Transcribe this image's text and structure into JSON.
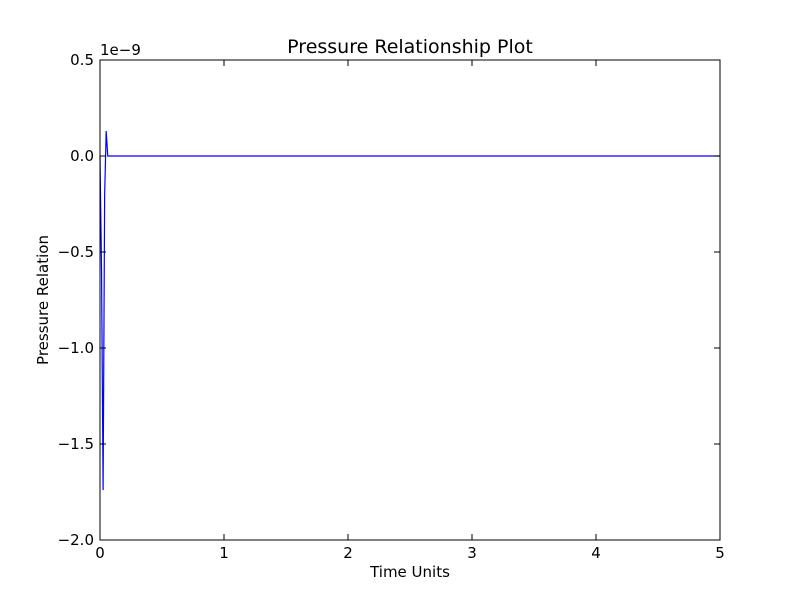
{
  "chart_data": {
    "type": "line",
    "title": "Pressure Relationship Plot",
    "xlabel": "Time Units",
    "ylabel": "Pressure Relation",
    "y_offset_label": "1e−9",
    "xlim": [
      0,
      5
    ],
    "ylim": [
      -2.0,
      0.5
    ],
    "x_ticks": [
      0,
      1,
      2,
      3,
      4,
      5
    ],
    "x_tick_labels": [
      "0",
      "1",
      "2",
      "3",
      "4",
      "5"
    ],
    "y_ticks": [
      -2.0,
      -1.5,
      -1.0,
      -0.5,
      0.0,
      0.5
    ],
    "y_tick_labels": [
      "−2.0",
      "−1.5",
      "−1.0",
      "−0.5",
      "0.0",
      "0.5"
    ],
    "grid": false,
    "line_color": "#0000ff",
    "series": [
      {
        "x": [
          0.0,
          0.0125,
          0.025,
          0.0375,
          0.05,
          0.0625,
          0.075,
          0.1,
          0.5,
          1.0,
          2.0,
          3.0,
          4.0,
          5.0
        ],
        "values": [
          0.0,
          -0.6,
          -1.74,
          -0.2,
          0.13,
          0.0,
          0.0,
          0.0,
          0.0,
          0.0,
          0.0,
          0.0,
          0.0,
          0.0
        ]
      }
    ]
  }
}
